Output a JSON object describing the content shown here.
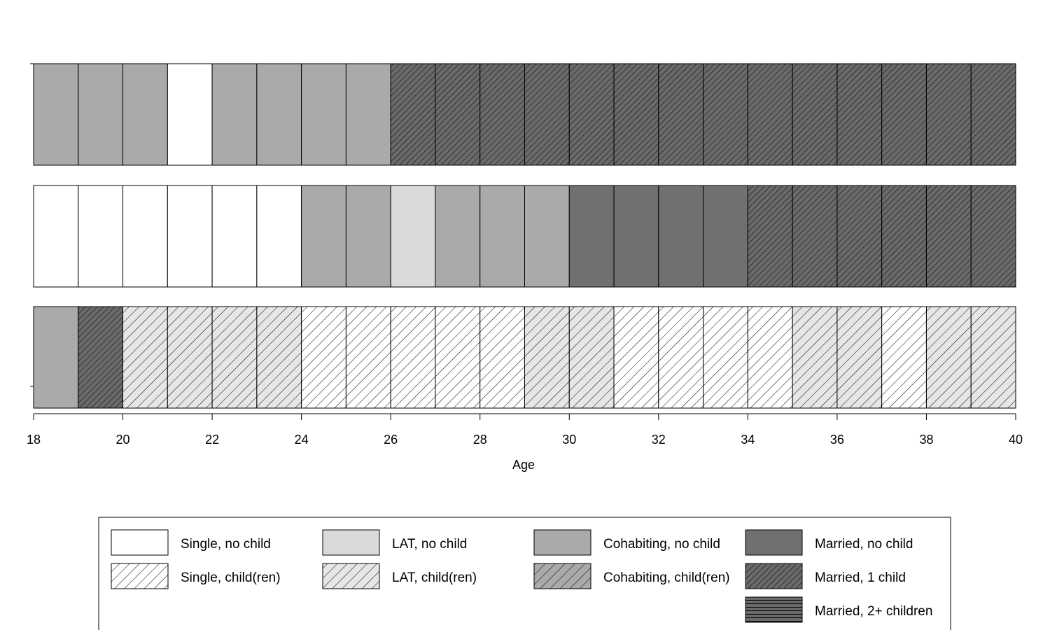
{
  "chart_data": {
    "type": "sequence-index-plot",
    "xlabel": "Age",
    "xlim": [
      18,
      40
    ],
    "xticks": [
      "18",
      "20",
      "22",
      "24",
      "26",
      "28",
      "30",
      "32",
      "34",
      "36",
      "38",
      "40"
    ],
    "states": [
      {
        "code": "S0",
        "label": "Single, no child",
        "fill": "#ffffff",
        "hatch": "none"
      },
      {
        "code": "L0",
        "label": "LAT, no child",
        "fill": "#dadada",
        "hatch": "none"
      },
      {
        "code": "C0",
        "label": "Cohabiting, no child",
        "fill": "#aaaaaa",
        "hatch": "none"
      },
      {
        "code": "M0",
        "label": "Married, no child",
        "fill": "#707070",
        "hatch": "none"
      },
      {
        "code": "S1",
        "label": "Single, child(ren)",
        "fill": "#ffffff",
        "hatch": "diag-wide"
      },
      {
        "code": "L1",
        "label": "LAT, child(ren)",
        "fill": "#e6e6e6",
        "hatch": "diag-wide"
      },
      {
        "code": "C1",
        "label": "Cohabiting, child(ren)",
        "fill": "#aaaaaa",
        "hatch": "diag-wide"
      },
      {
        "code": "M1",
        "label": "Married, 1 child",
        "fill": "#6a6a6a",
        "hatch": "diag-dense"
      },
      {
        "code": "M2",
        "label": "Married, 2+ children",
        "fill": "#6a6a6a",
        "hatch": "horizontal"
      }
    ],
    "sequences": [
      [
        "C0",
        "C0",
        "C0",
        "S0",
        "C0",
        "C0",
        "C0",
        "C0",
        "M1",
        "M1",
        "M1",
        "M1",
        "M1",
        "M1",
        "M1",
        "M1",
        "M1",
        "M1",
        "M1",
        "M1",
        "M1",
        "M1"
      ],
      [
        "S0",
        "S0",
        "S0",
        "S0",
        "S0",
        "S0",
        "C0",
        "C0",
        "L0",
        "C0",
        "C0",
        "C0",
        "M0",
        "M0",
        "M0",
        "M0",
        "M1",
        "M1",
        "M1",
        "M1",
        "M1",
        "M1"
      ],
      [
        "C0",
        "M1",
        "L1",
        "L1",
        "L1",
        "L1",
        "S1",
        "S1",
        "S1",
        "S1",
        "S1",
        "L1",
        "L1",
        "S1",
        "S1",
        "S1",
        "S1",
        "L1",
        "L1",
        "S1",
        "L1",
        "L1"
      ]
    ],
    "legend_order": [
      [
        "S0",
        "S1"
      ],
      [
        "L0",
        "L1"
      ],
      [
        "C0",
        "C1"
      ],
      [
        "M0",
        "M1",
        "M2"
      ]
    ]
  }
}
